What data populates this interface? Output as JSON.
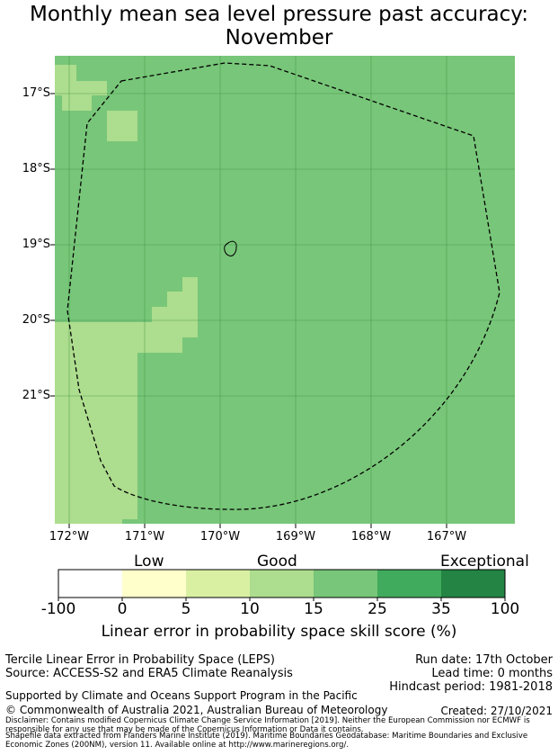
{
  "title": {
    "line1": "Monthly mean sea level pressure past accuracy:",
    "line2": "November"
  },
  "map": {
    "lat_labels": [
      "17°S",
      "18°S",
      "19°S",
      "20°S",
      "21°S"
    ],
    "lon_labels": [
      "172°W",
      "171°W",
      "170°W",
      "169°W",
      "168°W",
      "167°W"
    ],
    "colors": {
      "category_15_25": "#78c679",
      "category_10_15": "#addd8e",
      "grid_line": "#3a8a3e",
      "eez_boundary": "#000000"
    }
  },
  "colorbar": {
    "category_labels": {
      "low": "Low",
      "good": "Good",
      "exceptional": "Exceptional"
    },
    "ticks": [
      "-100",
      "0",
      "5",
      "10",
      "15",
      "25",
      "35",
      "100"
    ],
    "colors": [
      "#ffffff",
      "#ffffcc",
      "#d9f0a3",
      "#addd8e",
      "#78c679",
      "#41ab5d",
      "#238443"
    ],
    "title": "Linear error in probability space skill score (%)"
  },
  "info": {
    "leps_title": "Tercile Linear Error in Probability Space (LEPS)",
    "source": "Source: ACCESS-S2 and ERA5 Climate Reanalysis",
    "run_date": "Run date: 17th October",
    "lead_time": "Lead time: 0 months",
    "hindcast": "Hindcast period: 1981-2018",
    "supported": "Supported by Climate and Oceans Support Program in the Pacific",
    "copyright": "© Commonwealth of Australia 2021, Australian Bureau of Meteorology",
    "created": "Created: 27/10/2021",
    "disclaimer": "Disclaimer: Contains modified Copernicus Climate Change Service Information [2019]. Neither the European Commission nor ECMWF is responsible for any use that may be made of the Copernicus Information or Data it contains.",
    "shapefile": "Shapefile data extracted from Flanders Marine Institute (2019). Maritime Boundaries Geodatabase: Maritime Boundaries and Exclusive Economic Zones (200NM), version 11. Available online at http://www.marineregions.org/."
  }
}
